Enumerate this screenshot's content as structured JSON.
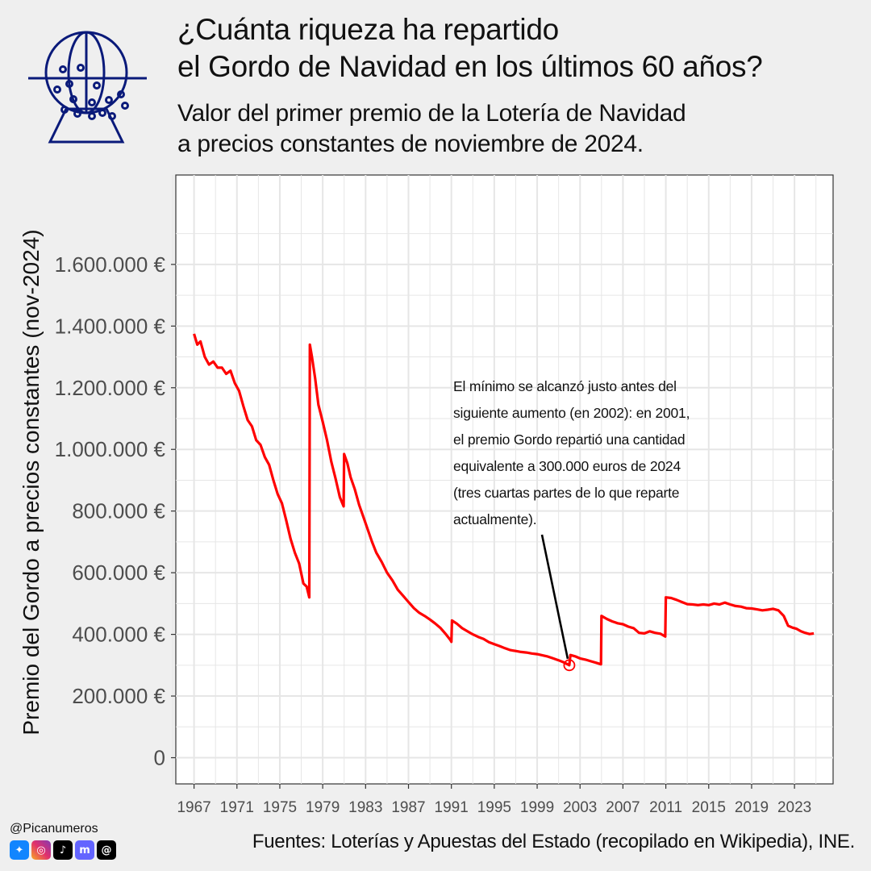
{
  "header": {
    "title_line1": "¿Cuánta riqueza ha repartido",
    "title_line2": "el Gordo de Navidad en los últimos 60 años?",
    "subtitle_line1": "Valor del primer premio de la Lotería de Navidad",
    "subtitle_line2": "a precios constantes de noviembre de 2024."
  },
  "logo_icon": "lottery-drum-icon",
  "colors": {
    "background": "#efefef",
    "panel": "#ffffff",
    "grid": "#e6e6e6",
    "line": "#ff0000",
    "logo": "#0a1a7a",
    "axis_text": "#4d4d4d"
  },
  "annotation": {
    "lines": [
      "El mínimo se alcanzó justo antes del",
      "siguiente aumento (en 2002): en 2001,",
      "el premio Gordo repartió una cantidad",
      "equivalente a 300.000 euros de 2024",
      "(tres cuartas partes de lo que reparte",
      "actualmente)."
    ],
    "point": {
      "x": 2002.0,
      "y": 300000
    }
  },
  "footer": {
    "handle": "@Picanumeros",
    "social_icons": [
      "bluesky-icon",
      "instagram-icon",
      "tiktok-icon",
      "mastodon-icon",
      "threads-icon"
    ],
    "source": "Fuentes: Loterías y Apuestas del Estado (recopilado en Wikipedia), INE."
  },
  "chart_data": {
    "type": "line",
    "title": "¿Cuánta riqueza ha repartido el Gordo de Navidad en los últimos 60 años?",
    "subtitle": "Valor del primer premio de la Lotería de Navidad a precios constantes de noviembre de 2024.",
    "xlabel": "",
    "ylabel": "Premio del Gordo a precios constantes (nov-2024)",
    "xlim": [
      1965.3,
      2026.6
    ],
    "ylim": [
      -85000,
      1890000
    ],
    "grid": true,
    "x_ticks": [
      1967,
      1971,
      1975,
      1979,
      1983,
      1987,
      1991,
      1995,
      1999,
      2003,
      2007,
      2011,
      2015,
      2019,
      2023
    ],
    "x_tick_labels": [
      "1967",
      "1971",
      "1975",
      "1979",
      "1983",
      "1987",
      "1991",
      "1995",
      "1999",
      "2003",
      "2007",
      "2011",
      "2015",
      "2019",
      "2023"
    ],
    "y_ticks": [
      0,
      200000,
      400000,
      600000,
      800000,
      1000000,
      1200000,
      1400000,
      1600000
    ],
    "y_tick_labels": [
      "0",
      "200.000 €",
      "400.000 €",
      "600.000 €",
      "800.000 €",
      "1.000.000 €",
      "1.200.000 €",
      "1.400.000 €",
      "1.600.000 €"
    ],
    "series": [
      {
        "color": "#ff0000",
        "points": [
          [
            1967.0,
            1375000
          ],
          [
            1967.3,
            1340000
          ],
          [
            1967.6,
            1350000
          ],
          [
            1968.0,
            1300000
          ],
          [
            1968.4,
            1275000
          ],
          [
            1968.8,
            1285000
          ],
          [
            1969.2,
            1265000
          ],
          [
            1969.6,
            1265000
          ],
          [
            1970.0,
            1245000
          ],
          [
            1970.4,
            1255000
          ],
          [
            1970.8,
            1215000
          ],
          [
            1971.2,
            1190000
          ],
          [
            1971.6,
            1140000
          ],
          [
            1972.0,
            1095000
          ],
          [
            1972.4,
            1075000
          ],
          [
            1972.8,
            1030000
          ],
          [
            1973.2,
            1015000
          ],
          [
            1973.6,
            975000
          ],
          [
            1974.0,
            950000
          ],
          [
            1974.4,
            900000
          ],
          [
            1974.8,
            855000
          ],
          [
            1975.2,
            825000
          ],
          [
            1975.6,
            770000
          ],
          [
            1976.0,
            710000
          ],
          [
            1976.4,
            665000
          ],
          [
            1976.8,
            630000
          ],
          [
            1977.2,
            565000
          ],
          [
            1977.5,
            555000
          ],
          [
            1977.75,
            520000
          ],
          [
            1977.8,
            1340000
          ],
          [
            1978.0,
            1300000
          ],
          [
            1978.3,
            1230000
          ],
          [
            1978.6,
            1145000
          ],
          [
            1979.0,
            1090000
          ],
          [
            1979.4,
            1030000
          ],
          [
            1979.8,
            960000
          ],
          [
            1980.2,
            905000
          ],
          [
            1980.6,
            845000
          ],
          [
            1980.95,
            815000
          ],
          [
            1981.0,
            985000
          ],
          [
            1981.3,
            955000
          ],
          [
            1981.6,
            910000
          ],
          [
            1982.0,
            870000
          ],
          [
            1982.4,
            820000
          ],
          [
            1982.8,
            780000
          ],
          [
            1983.2,
            740000
          ],
          [
            1983.6,
            700000
          ],
          [
            1984.0,
            665000
          ],
          [
            1984.5,
            635000
          ],
          [
            1985.0,
            600000
          ],
          [
            1985.5,
            575000
          ],
          [
            1986.0,
            545000
          ],
          [
            1986.5,
            525000
          ],
          [
            1987.0,
            505000
          ],
          [
            1987.5,
            485000
          ],
          [
            1988.0,
            470000
          ],
          [
            1988.5,
            460000
          ],
          [
            1989.0,
            448000
          ],
          [
            1989.5,
            435000
          ],
          [
            1990.0,
            420000
          ],
          [
            1990.5,
            400000
          ],
          [
            1990.9,
            382000
          ],
          [
            1991.0,
            376000
          ],
          [
            1991.05,
            445000
          ],
          [
            1991.5,
            435000
          ],
          [
            1992.0,
            420000
          ],
          [
            1992.5,
            410000
          ],
          [
            1993.0,
            400000
          ],
          [
            1993.5,
            392000
          ],
          [
            1994.0,
            385000
          ],
          [
            1994.5,
            375000
          ],
          [
            1995.0,
            368000
          ],
          [
            1995.5,
            362000
          ],
          [
            1996.0,
            355000
          ],
          [
            1996.5,
            349000
          ],
          [
            1997.0,
            346000
          ],
          [
            1997.5,
            343000
          ],
          [
            1998.0,
            341000
          ],
          [
            1998.5,
            338000
          ],
          [
            1999.0,
            336000
          ],
          [
            1999.5,
            332000
          ],
          [
            2000.0,
            328000
          ],
          [
            2000.5,
            322000
          ],
          [
            2001.0,
            316000
          ],
          [
            2001.5,
            309000
          ],
          [
            2002.0,
            300000
          ],
          [
            2002.1,
            333000
          ],
          [
            2002.6,
            328000
          ],
          [
            2003.0,
            322000
          ],
          [
            2003.5,
            318000
          ],
          [
            2004.0,
            313000
          ],
          [
            2004.5,
            308000
          ],
          [
            2004.95,
            303000
          ],
          [
            2005.0,
            460000
          ],
          [
            2005.5,
            450000
          ],
          [
            2006.0,
            442000
          ],
          [
            2006.5,
            436000
          ],
          [
            2007.0,
            433000
          ],
          [
            2007.5,
            425000
          ],
          [
            2008.0,
            420000
          ],
          [
            2008.5,
            405000
          ],
          [
            2009.0,
            403000
          ],
          [
            2009.5,
            410000
          ],
          [
            2010.0,
            405000
          ],
          [
            2010.5,
            402000
          ],
          [
            2010.95,
            393000
          ],
          [
            2011.0,
            520000
          ],
          [
            2011.5,
            518000
          ],
          [
            2012.0,
            512000
          ],
          [
            2012.5,
            505000
          ],
          [
            2013.0,
            498000
          ],
          [
            2013.5,
            497000
          ],
          [
            2014.0,
            495000
          ],
          [
            2014.5,
            497000
          ],
          [
            2015.0,
            495000
          ],
          [
            2015.5,
            500000
          ],
          [
            2016.0,
            497000
          ],
          [
            2016.5,
            503000
          ],
          [
            2017.0,
            497000
          ],
          [
            2017.5,
            492000
          ],
          [
            2018.0,
            490000
          ],
          [
            2018.5,
            485000
          ],
          [
            2019.0,
            484000
          ],
          [
            2019.5,
            481000
          ],
          [
            2020.0,
            478000
          ],
          [
            2020.5,
            480000
          ],
          [
            2021.0,
            483000
          ],
          [
            2021.5,
            478000
          ],
          [
            2022.0,
            460000
          ],
          [
            2022.4,
            428000
          ],
          [
            2022.8,
            422000
          ],
          [
            2023.2,
            418000
          ],
          [
            2023.6,
            410000
          ],
          [
            2024.0,
            405000
          ],
          [
            2024.4,
            401000
          ],
          [
            2024.8,
            403000
          ]
        ]
      }
    ]
  }
}
